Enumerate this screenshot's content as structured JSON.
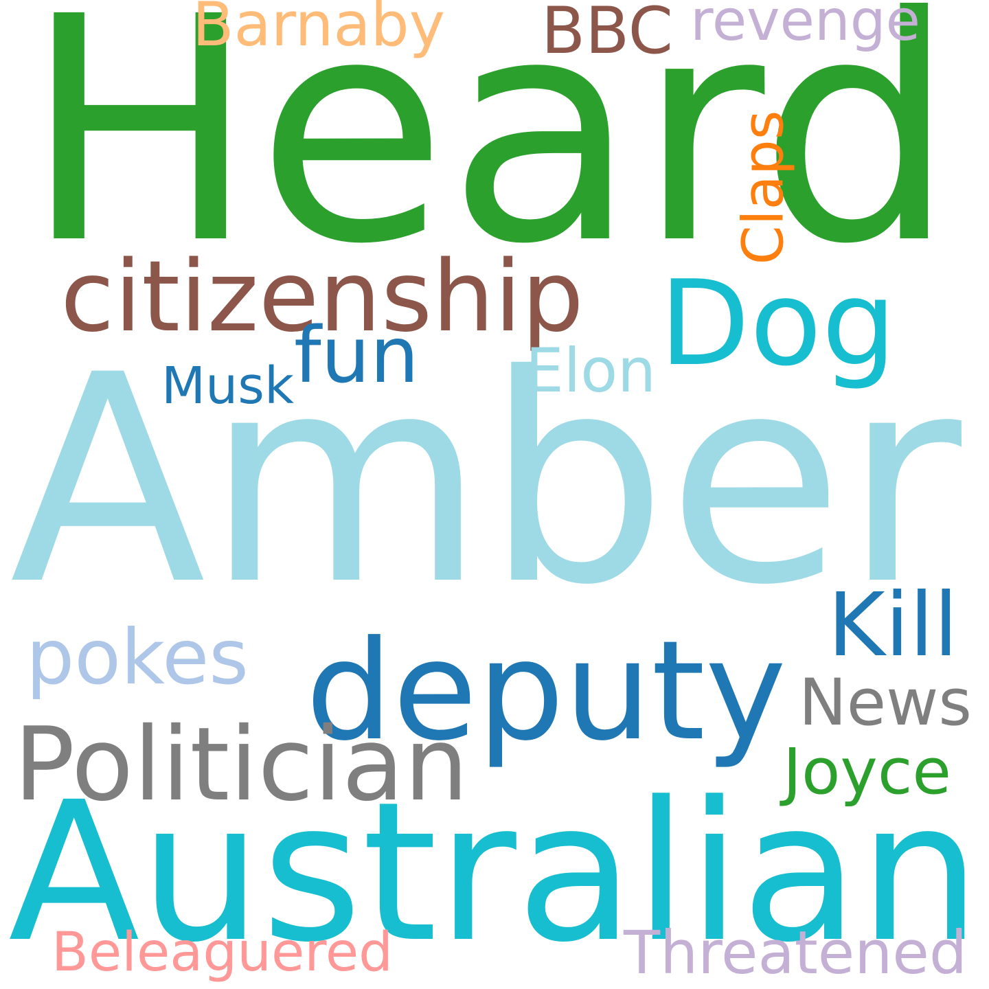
{
  "words": [
    {
      "text": "Heard",
      "color": "#2ca02c"
    },
    {
      "text": "Amber",
      "color": "#9edae5"
    },
    {
      "text": "Australian",
      "color": "#17becf"
    },
    {
      "text": "deputy",
      "color": "#1f77b4"
    },
    {
      "text": "Dog",
      "color": "#17becf"
    },
    {
      "text": "citizenship",
      "color": "#8c564b"
    },
    {
      "text": "Politician",
      "color": "#7f7f7f"
    },
    {
      "text": "pokes",
      "color": "#aec7e8"
    },
    {
      "text": "News",
      "color": "#7f7f7f"
    },
    {
      "text": "fun",
      "color": "#1f77b4"
    },
    {
      "text": "BBC",
      "color": "#8c564b"
    },
    {
      "text": "Barnaby",
      "color": "#ffbb78"
    },
    {
      "text": "Threatened",
      "color": "#c5b0d5"
    },
    {
      "text": "Beleaguered",
      "color": "#ff9896"
    },
    {
      "text": "Elon",
      "color": "#9edae5"
    },
    {
      "text": "Musk",
      "color": "#1f77b4"
    },
    {
      "text": "Joyce",
      "color": "#2ca02c"
    },
    {
      "text": "Kill",
      "color": "#1f77b4"
    },
    {
      "text": "revenge",
      "color": "#c5b0d5"
    },
    {
      "text": "Claps",
      "color": "#ff7f0e"
    }
  ]
}
